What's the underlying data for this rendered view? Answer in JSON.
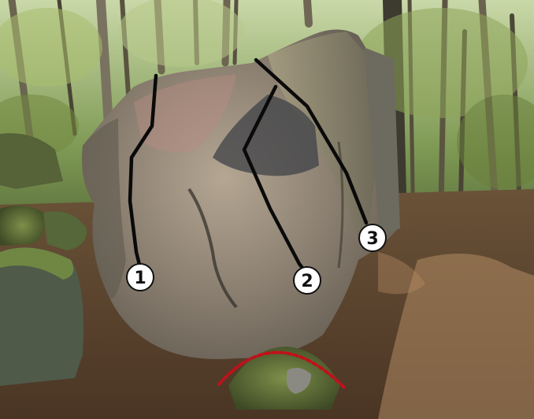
{
  "photo": {
    "subject": "boulder-topo",
    "colors": {
      "route_line": "#0a0a0a",
      "marker_fill": "#ffffff",
      "marker_text": "#111111",
      "start_arc": "#c0111b"
    }
  },
  "routes": [
    {
      "number": "1"
    },
    {
      "number": "2"
    },
    {
      "number": "3"
    }
  ]
}
